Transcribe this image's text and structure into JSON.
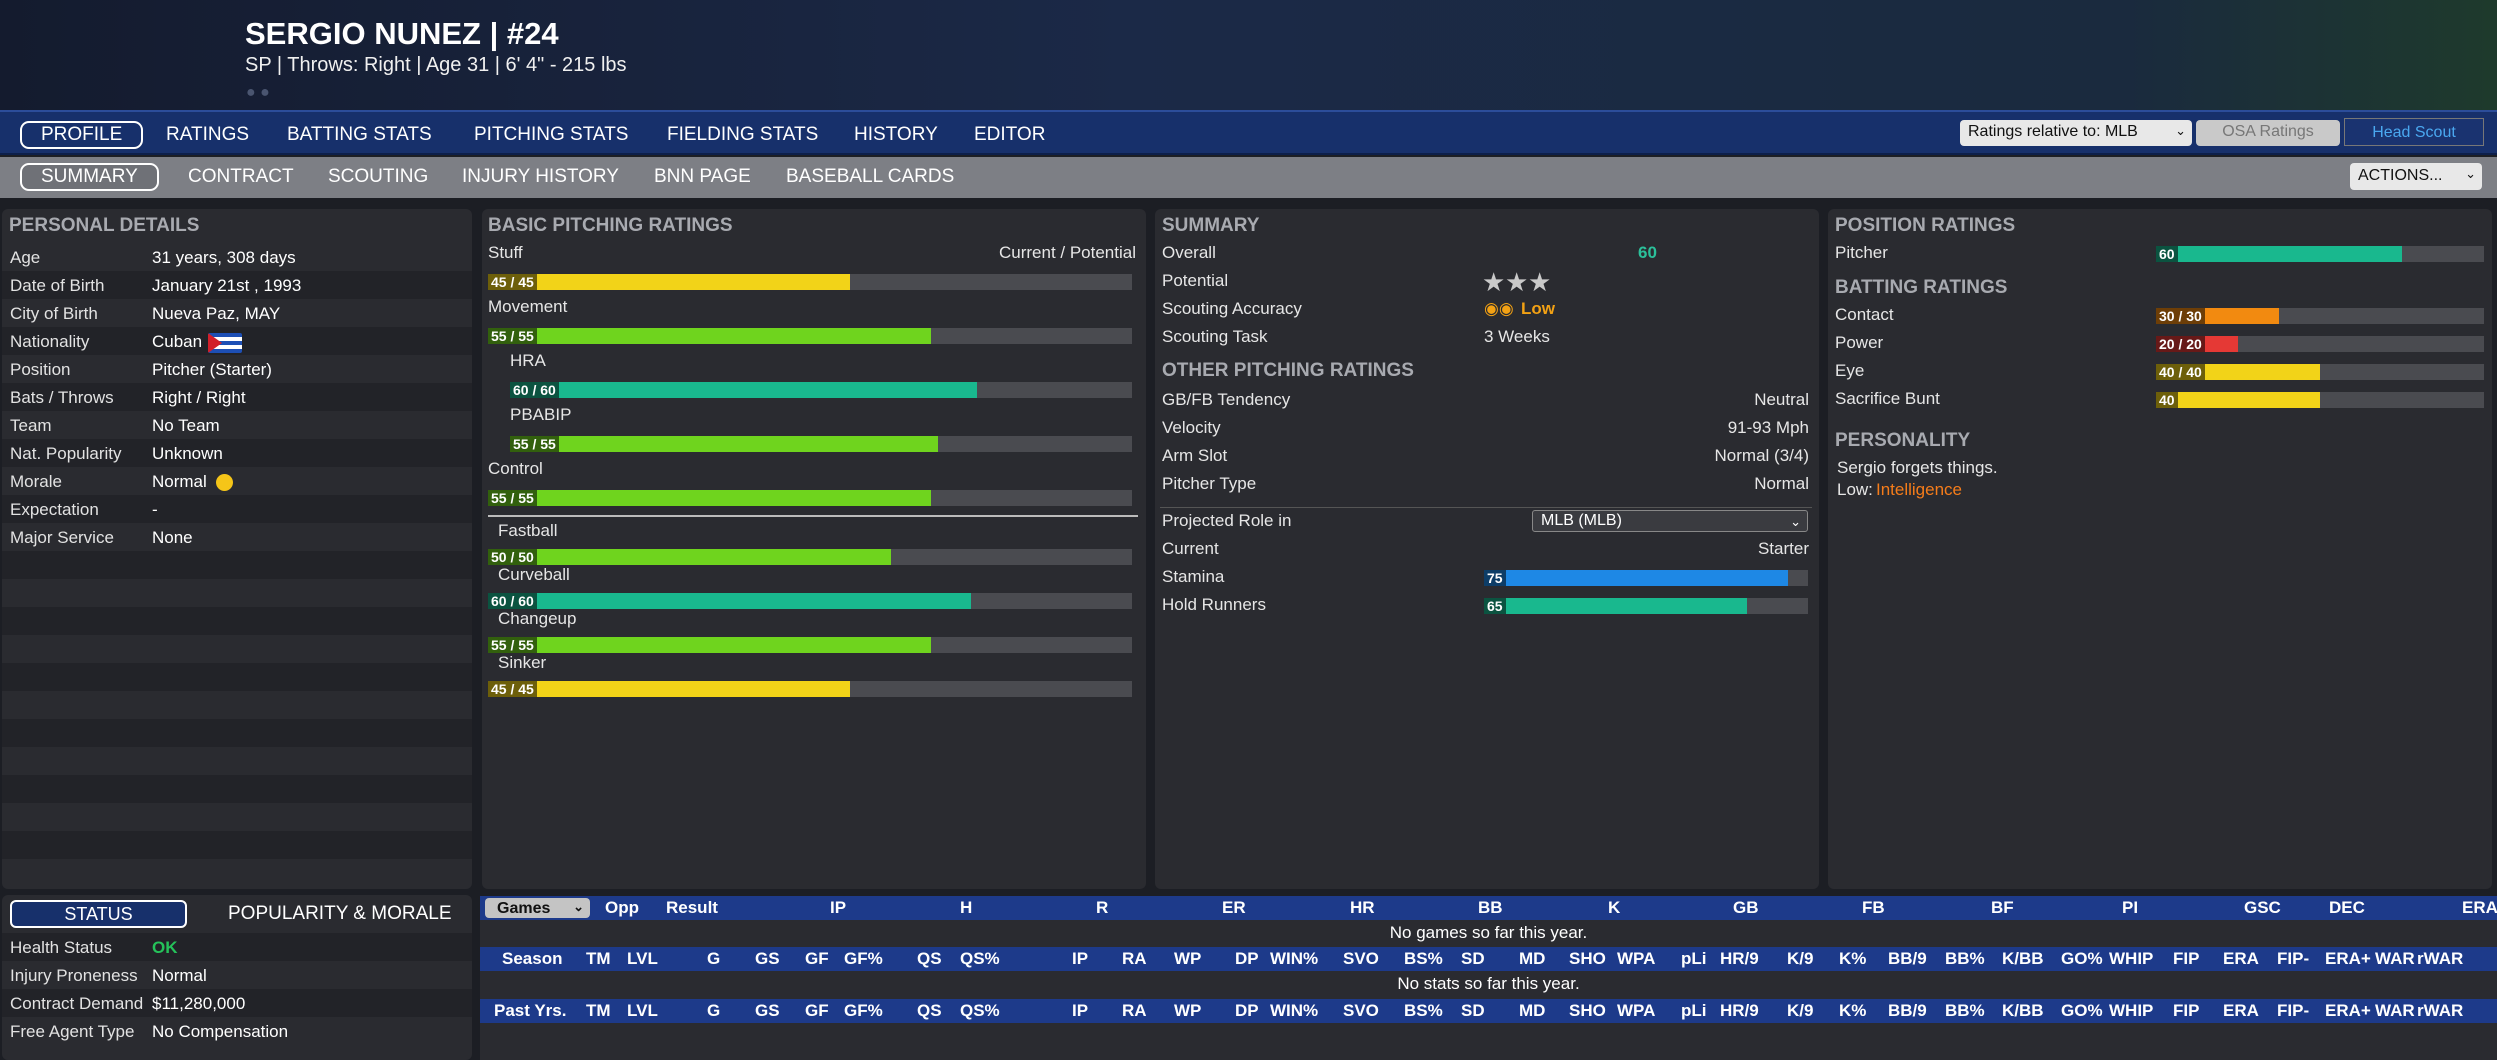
{
  "header": {
    "name": "SERGIO NUNEZ  |  #24",
    "subline": "SP | Throws: Right  |  Age 31  |  6' 4\" - 215 lbs",
    "dots": "● ●"
  },
  "nav1": {
    "tabs": [
      "PROFILE",
      "RATINGS",
      "BATTING STATS",
      "PITCHING STATS",
      "FIELDING STATS",
      "HISTORY",
      "EDITOR"
    ],
    "ratings_relative": "Ratings relative to: MLB",
    "osa": "OSA Ratings",
    "head_scout": "Head Scout"
  },
  "nav2": {
    "tabs": [
      "SUMMARY",
      "CONTRACT",
      "SCOUTING",
      "INJURY HISTORY",
      "BNN PAGE",
      "BASEBALL CARDS"
    ],
    "actions": "ACTIONS..."
  },
  "personal": {
    "title": "PERSONAL DETAILS",
    "rows": [
      {
        "label": "Age",
        "value": "31 years, 308 days"
      },
      {
        "label": "Date of Birth",
        "value": "January 21st , 1993"
      },
      {
        "label": "City of Birth",
        "value": "Nueva Paz, MAY"
      },
      {
        "label": "Nationality",
        "value": "Cuban"
      },
      {
        "label": "Position",
        "value": "Pitcher (Starter)"
      },
      {
        "label": "Bats / Throws",
        "value": "Right / Right"
      },
      {
        "label": "Team",
        "value": "No Team"
      },
      {
        "label": "Nat. Popularity",
        "value": "Unknown"
      },
      {
        "label": "Morale",
        "value": "Normal"
      },
      {
        "label": "Expectation",
        "value": "-"
      },
      {
        "label": "Major Service",
        "value": "None"
      }
    ]
  },
  "status": {
    "tab_status": "STATUS",
    "tab_pop": "POPULARITY & MORALE",
    "rows": [
      {
        "label": "Health Status",
        "value": "OK"
      },
      {
        "label": "Injury Proneness",
        "value": "Normal"
      },
      {
        "label": "Contract Demand",
        "value": "$11,280,000"
      },
      {
        "label": "Free Agent Type",
        "value": "No Compensation"
      }
    ]
  },
  "pitching": {
    "title": "BASIC PITCHING RATINGS",
    "current_potential": "Current / Potential",
    "main": [
      {
        "name": "Stuff",
        "text": "45 / 45",
        "value": 45,
        "color": "#f2d318"
      },
      {
        "name": "Movement",
        "text": "55 / 55",
        "value": 55,
        "color": "#6fd41e"
      },
      {
        "name": "HRA",
        "text": "60 / 60",
        "value": 60,
        "color": "#19b88e"
      },
      {
        "name": "PBABIP",
        "text": "55 / 55",
        "value": 55,
        "color": "#6fd41e"
      },
      {
        "name": "Control",
        "text": "55 / 55",
        "value": 55,
        "color": "#6fd41e"
      }
    ],
    "pitches": [
      {
        "name": "Fastball",
        "text": "50 / 50",
        "value": 50,
        "color": "#6fd41e"
      },
      {
        "name": "Curveball",
        "text": "60 / 60",
        "value": 60,
        "color": "#19b88e"
      },
      {
        "name": "Changeup",
        "text": "55 / 55",
        "value": 55,
        "color": "#6fd41e"
      },
      {
        "name": "Sinker",
        "text": "45 / 45",
        "value": 45,
        "color": "#f2d318"
      }
    ]
  },
  "summary": {
    "title": "SUMMARY",
    "overall_label": "Overall",
    "overall": "60",
    "potential_label": "Potential",
    "stars": 3,
    "accuracy_label": "Scouting Accuracy",
    "accuracy": "Low",
    "task_label": "Scouting Task",
    "task": "3 Weeks",
    "other_title": "OTHER PITCHING RATINGS",
    "other": [
      {
        "label": "GB/FB Tendency",
        "value": "Neutral"
      },
      {
        "label": "Velocity",
        "value": "91-93 Mph"
      },
      {
        "label": "Arm Slot",
        "value": "Normal (3/4)"
      },
      {
        "label": "Pitcher Type",
        "value": "Normal"
      }
    ],
    "projected_label": "Projected Role in",
    "projected_value": "MLB (MLB)",
    "current_label": "Current",
    "current_value": "Starter",
    "stamina_label": "Stamina",
    "stamina": 75,
    "stamina_text": "75",
    "stamina_color": "#1e88e5",
    "hold_label": "Hold Runners",
    "hold": 65,
    "hold_text": "65",
    "hold_color": "#19b88e"
  },
  "position": {
    "title": "POSITION RATINGS",
    "pitcher_label": "Pitcher",
    "pitcher": 60,
    "pitcher_text": "60",
    "pitcher_color": "#19b88e",
    "batting_title": "BATTING RATINGS",
    "batting": [
      {
        "label": "Contact",
        "text": "30 / 30",
        "value": 30,
        "color": "#f28a10"
      },
      {
        "label": "Power",
        "text": "20 / 20",
        "value": 20,
        "color": "#e53935"
      },
      {
        "label": "Eye",
        "text": "40 / 40",
        "value": 40,
        "color": "#f2d318"
      },
      {
        "label": "Sacrifice Bunt",
        "text": "40",
        "value": 40,
        "color": "#f2d318"
      }
    ],
    "personality_title": "PERSONALITY",
    "personality_line": "Sergio forgets things.",
    "low_label": "Low:",
    "low_value": "Intelligence"
  },
  "games": {
    "dropdown": "Games",
    "headers": [
      "Opp",
      "Result",
      "IP",
      "H",
      "R",
      "ER",
      "HR",
      "BB",
      "K",
      "GB",
      "FB",
      "BF",
      "PI",
      "GSC",
      "DEC",
      "ERA"
    ],
    "no_games": "No games so far this year."
  },
  "season": {
    "label": "Season",
    "headers": [
      "TM",
      "LVL",
      "G",
      "GS",
      "GF",
      "GF%",
      "QS",
      "QS%",
      "IP",
      "RA",
      "WP",
      "DP",
      "WIN%",
      "SVO",
      "BS%",
      "SD",
      "MD",
      "SHO",
      "WPA",
      "pLi",
      "HR/9",
      "K/9",
      "K%",
      "BB/9",
      "BB%",
      "K/BB",
      "GO%",
      "WHIP",
      "FIP",
      "ERA",
      "FIP-",
      "ERA+",
      "WAR",
      "rWAR"
    ],
    "no_stats": "No stats so far this year."
  },
  "past": {
    "label": "Past Yrs."
  }
}
